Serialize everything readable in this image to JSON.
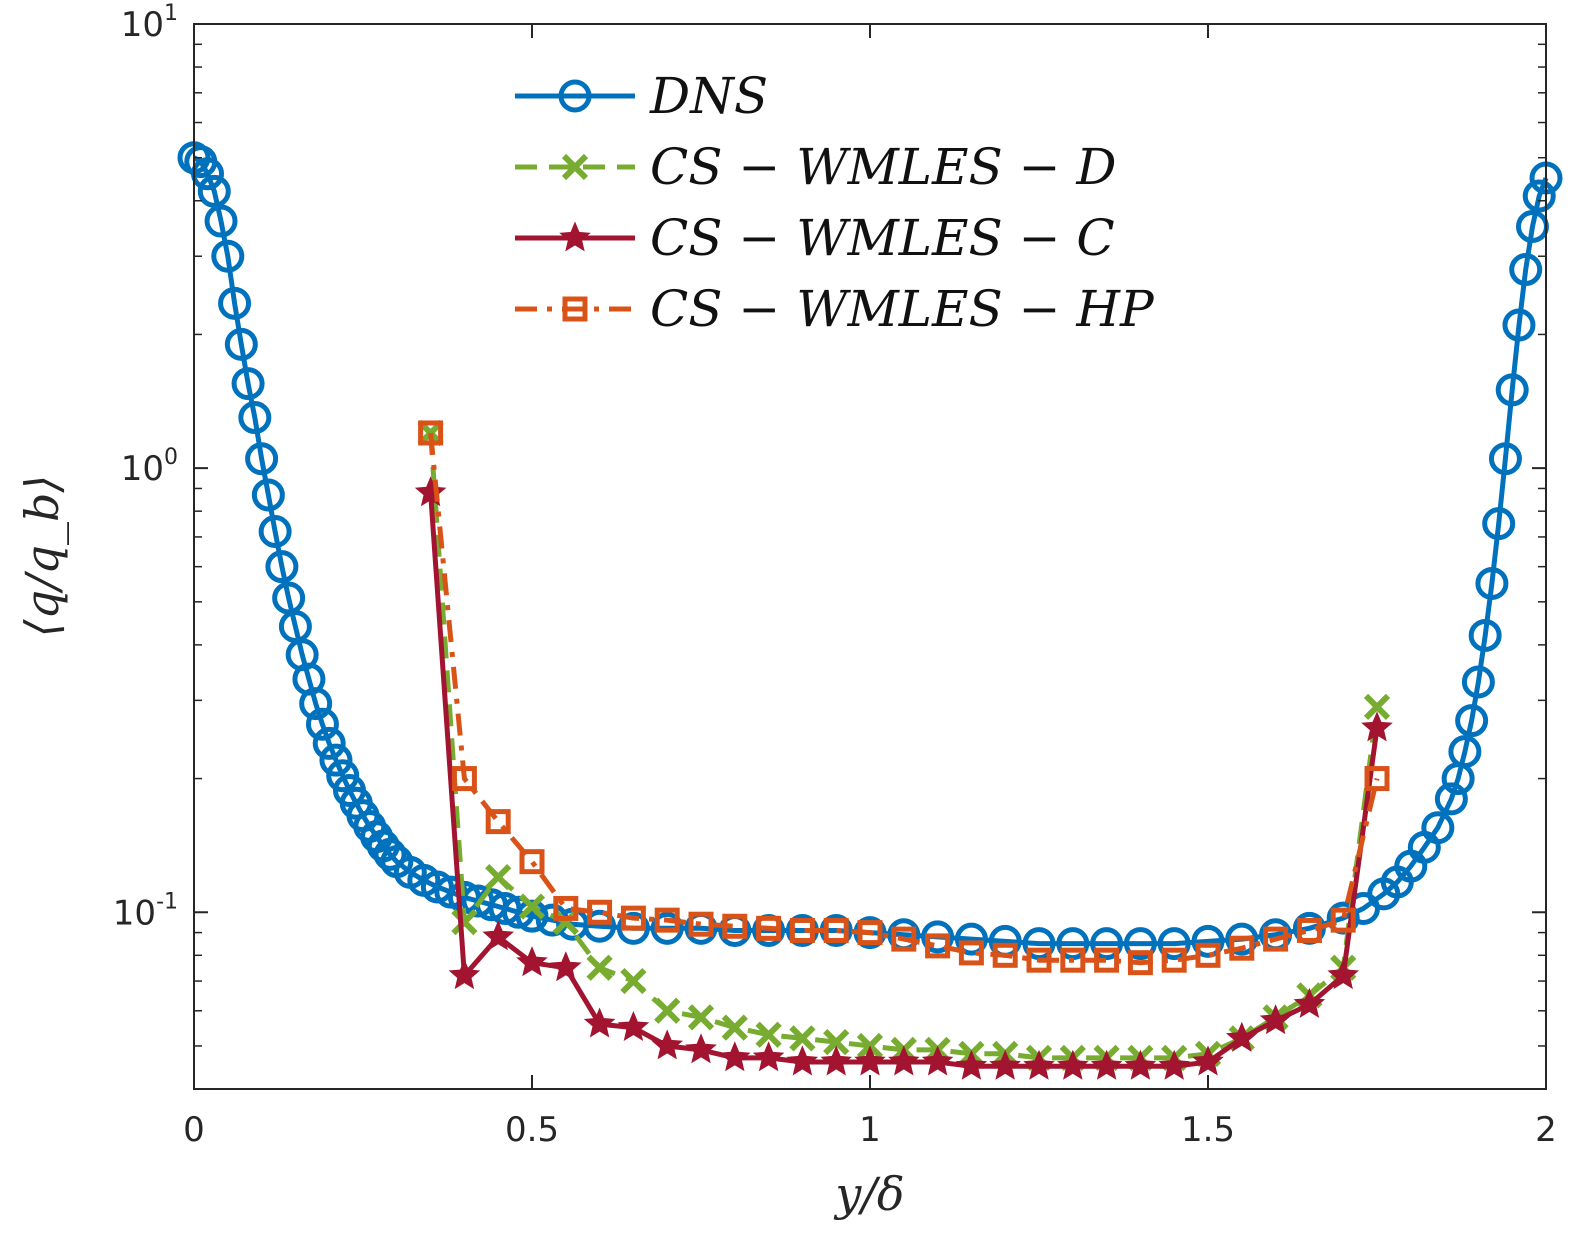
{
  "chart_data": {
    "type": "line",
    "title": "",
    "xlabel": "y/δ",
    "ylabel": "⟨q/q_b⟩",
    "yscale": "log",
    "xlim": [
      0,
      2
    ],
    "ylim": [
      0.04,
      10
    ],
    "grid": false,
    "legend_position": "top",
    "xticks": [
      {
        "value": 0,
        "label": "0"
      },
      {
        "value": 0.5,
        "label": "0.5"
      },
      {
        "value": 1,
        "label": "1"
      },
      {
        "value": 1.5,
        "label": "1.5"
      },
      {
        "value": 2,
        "label": "2"
      }
    ],
    "yticks": [
      {
        "value": 0.1,
        "base": "10",
        "exp": "-1"
      },
      {
        "value": 1,
        "base": "10",
        "exp": "0"
      },
      {
        "value": 10,
        "base": "10",
        "exp": "1"
      }
    ],
    "series": [
      {
        "name": "DNS",
        "color": "#0072BD",
        "marker": "circle",
        "line": "solid",
        "x": [
          0.0,
          0.01,
          0.02,
          0.03,
          0.04,
          0.05,
          0.06,
          0.07,
          0.08,
          0.09,
          0.1,
          0.11,
          0.12,
          0.13,
          0.14,
          0.15,
          0.16,
          0.17,
          0.18,
          0.19,
          0.2,
          0.21,
          0.22,
          0.23,
          0.24,
          0.25,
          0.26,
          0.27,
          0.28,
          0.29,
          0.3,
          0.32,
          0.34,
          0.36,
          0.38,
          0.4,
          0.42,
          0.44,
          0.46,
          0.48,
          0.5,
          0.53,
          0.56,
          0.6,
          0.65,
          0.7,
          0.75,
          0.8,
          0.85,
          0.9,
          0.95,
          1.0,
          1.05,
          1.1,
          1.15,
          1.2,
          1.25,
          1.3,
          1.35,
          1.4,
          1.45,
          1.5,
          1.55,
          1.6,
          1.65,
          1.7,
          1.73,
          1.76,
          1.78,
          1.8,
          1.82,
          1.84,
          1.86,
          1.87,
          1.88,
          1.89,
          1.9,
          1.91,
          1.92,
          1.93,
          1.94,
          1.95,
          1.96,
          1.97,
          1.98,
          1.99,
          2.0
        ],
        "values": [
          5.0,
          4.9,
          4.6,
          4.2,
          3.6,
          3.0,
          2.35,
          1.9,
          1.55,
          1.3,
          1.05,
          0.87,
          0.72,
          0.6,
          0.51,
          0.44,
          0.38,
          0.335,
          0.295,
          0.265,
          0.24,
          0.22,
          0.203,
          0.188,
          0.176,
          0.165,
          0.156,
          0.148,
          0.141,
          0.135,
          0.13,
          0.123,
          0.118,
          0.114,
          0.111,
          0.108,
          0.106,
          0.104,
          0.102,
          0.1,
          0.098,
          0.096,
          0.094,
          0.093,
          0.092,
          0.092,
          0.092,
          0.091,
          0.091,
          0.091,
          0.091,
          0.09,
          0.089,
          0.088,
          0.087,
          0.086,
          0.085,
          0.085,
          0.085,
          0.085,
          0.085,
          0.086,
          0.087,
          0.089,
          0.092,
          0.097,
          0.102,
          0.11,
          0.117,
          0.127,
          0.14,
          0.155,
          0.18,
          0.2,
          0.23,
          0.27,
          0.33,
          0.42,
          0.55,
          0.75,
          1.05,
          1.5,
          2.1,
          2.8,
          3.5,
          4.1,
          4.5
        ]
      },
      {
        "name": "CS − WMLES − D",
        "color": "#77AC30",
        "marker": "x",
        "line": "dashed",
        "x": [
          0.35,
          0.4,
          0.45,
          0.5,
          0.55,
          0.6,
          0.65,
          0.7,
          0.75,
          0.8,
          0.85,
          0.9,
          0.95,
          1.0,
          1.05,
          1.1,
          1.15,
          1.2,
          1.25,
          1.3,
          1.35,
          1.4,
          1.45,
          1.5,
          1.55,
          1.6,
          1.65,
          1.7,
          1.75
        ],
        "values": [
          1.2,
          0.095,
          0.12,
          0.103,
          0.095,
          0.075,
          0.07,
          0.06,
          0.058,
          0.055,
          0.053,
          0.052,
          0.051,
          0.05,
          0.049,
          0.049,
          0.048,
          0.048,
          0.047,
          0.047,
          0.047,
          0.047,
          0.047,
          0.048,
          0.052,
          0.058,
          0.065,
          0.075,
          0.29
        ]
      },
      {
        "name": "CS − WMLES − C",
        "color": "#A2142F",
        "marker": "star",
        "line": "solid",
        "x": [
          0.35,
          0.4,
          0.45,
          0.5,
          0.55,
          0.6,
          0.65,
          0.7,
          0.75,
          0.8,
          0.85,
          0.9,
          0.95,
          1.0,
          1.05,
          1.1,
          1.15,
          1.2,
          1.25,
          1.3,
          1.35,
          1.4,
          1.45,
          1.5,
          1.55,
          1.6,
          1.65,
          1.7,
          1.75
        ],
        "values": [
          0.88,
          0.072,
          0.088,
          0.077,
          0.075,
          0.056,
          0.055,
          0.05,
          0.049,
          0.047,
          0.047,
          0.046,
          0.046,
          0.046,
          0.046,
          0.046,
          0.045,
          0.045,
          0.045,
          0.045,
          0.045,
          0.045,
          0.045,
          0.046,
          0.052,
          0.057,
          0.062,
          0.072,
          0.26
        ]
      },
      {
        "name": "CS − WMLES − HP",
        "color": "#D95319",
        "marker": "square",
        "line": "dashdot",
        "x": [
          0.35,
          0.4,
          0.45,
          0.5,
          0.55,
          0.6,
          0.65,
          0.7,
          0.75,
          0.8,
          0.85,
          0.9,
          0.95,
          1.0,
          1.05,
          1.1,
          1.15,
          1.2,
          1.25,
          1.3,
          1.35,
          1.4,
          1.45,
          1.5,
          1.55,
          1.6,
          1.65,
          1.7,
          1.75
        ],
        "values": [
          1.2,
          0.2,
          0.16,
          0.13,
          0.102,
          0.1,
          0.097,
          0.096,
          0.094,
          0.093,
          0.092,
          0.091,
          0.091,
          0.09,
          0.087,
          0.084,
          0.081,
          0.08,
          0.078,
          0.078,
          0.078,
          0.077,
          0.078,
          0.08,
          0.083,
          0.087,
          0.091,
          0.096,
          0.2
        ]
      }
    ]
  }
}
